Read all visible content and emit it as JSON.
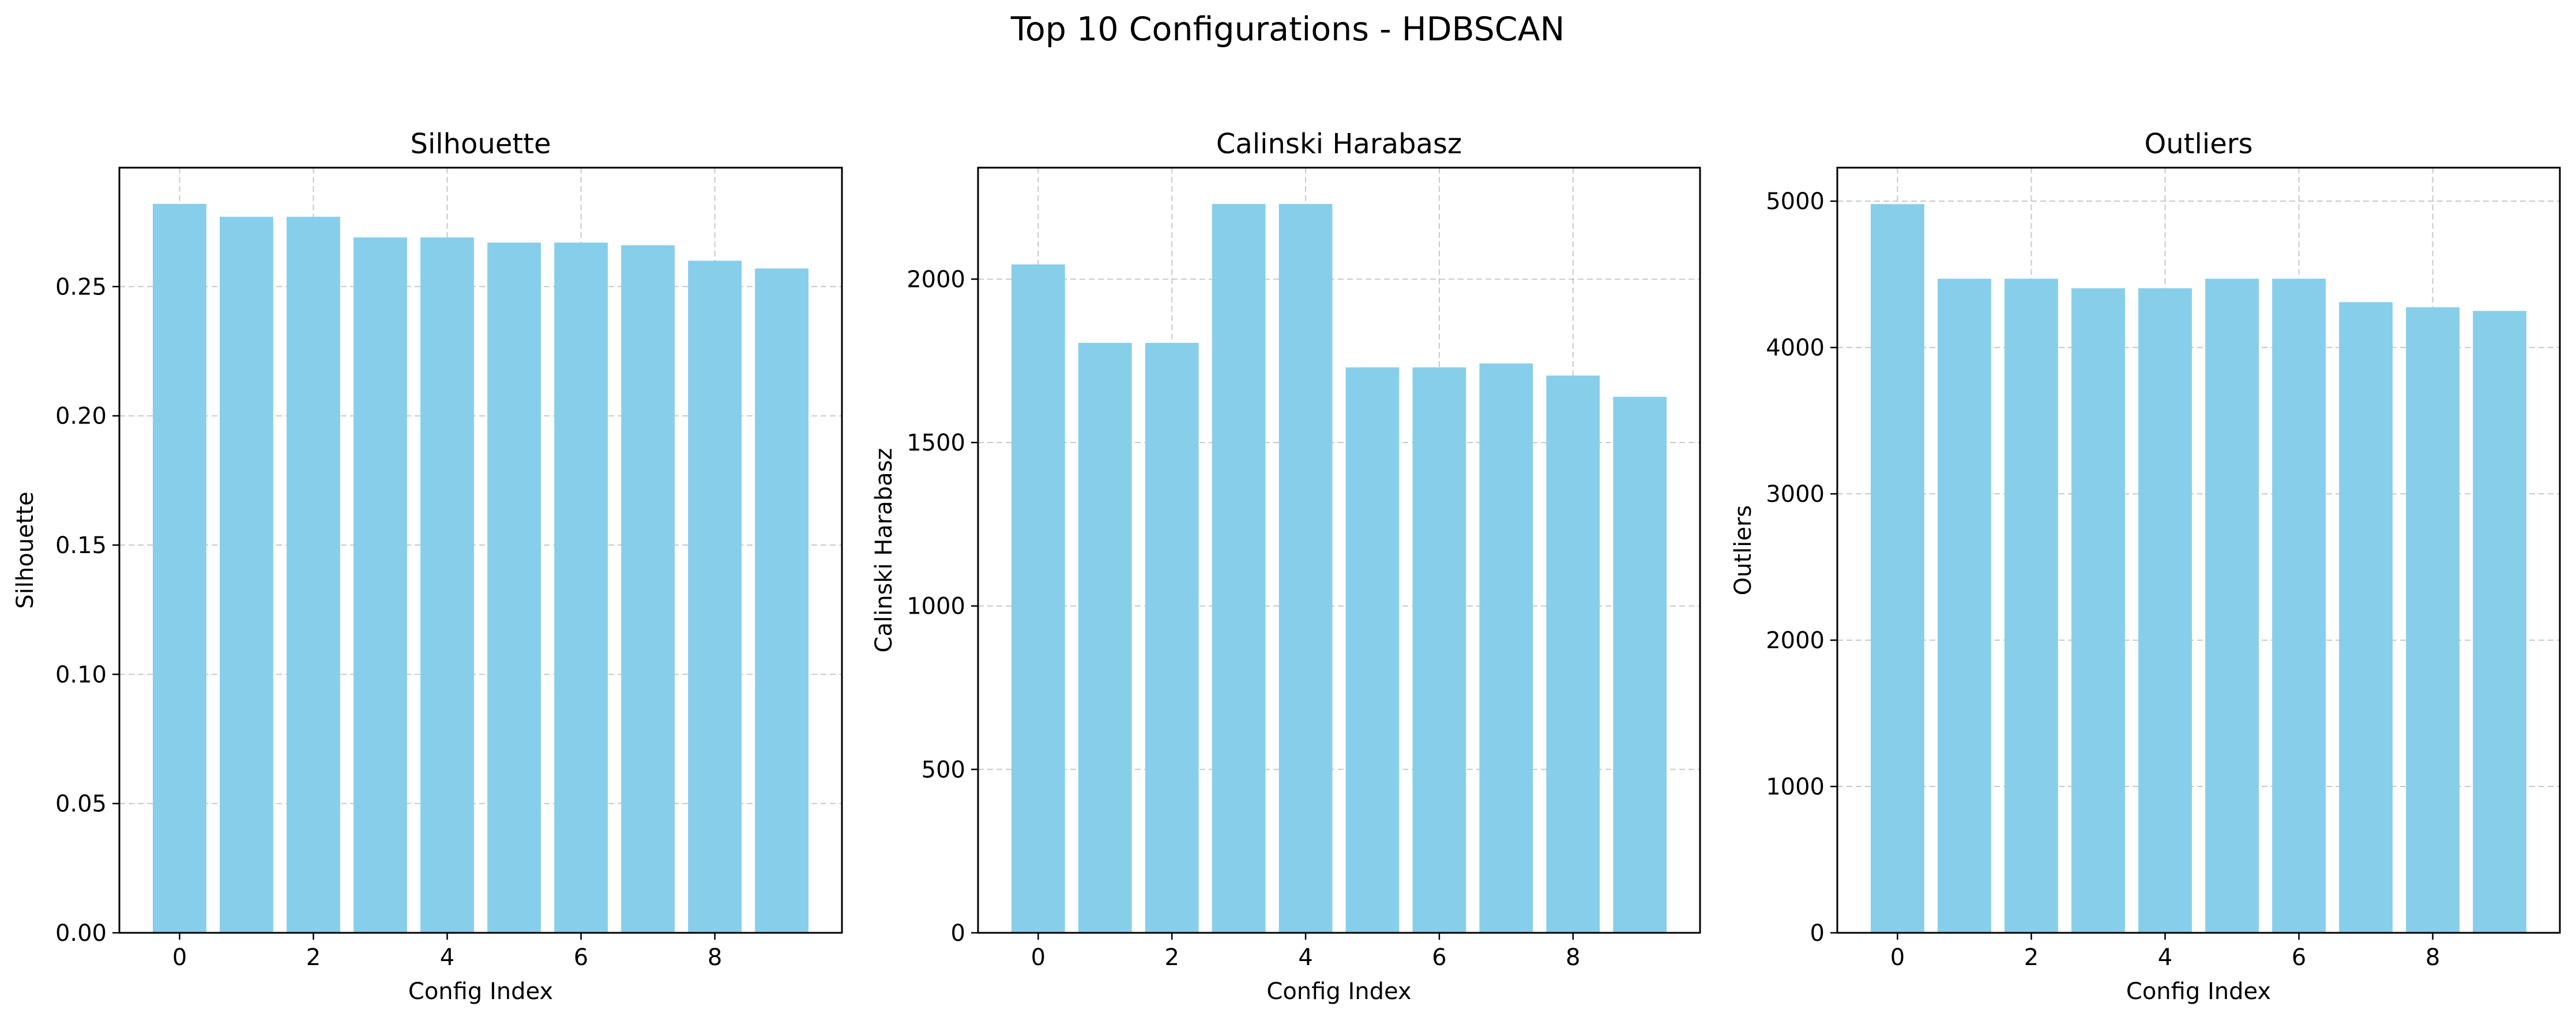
{
  "figure": {
    "suptitle": "Top 10 Configurations - HDBSCAN"
  },
  "style": {
    "bar_color": "#87CEEB",
    "grid_color": "#b0b0b0",
    "axes_color": "#000000"
  },
  "chart_data": [
    {
      "type": "bar",
      "title": "Silhouette",
      "xlabel": "Config Index",
      "ylabel": "Silhouette",
      "x": [
        0,
        1,
        2,
        3,
        4,
        5,
        6,
        7,
        8,
        9
      ],
      "values": [
        0.282,
        0.277,
        0.277,
        0.269,
        0.269,
        0.267,
        0.267,
        0.266,
        0.26,
        0.257
      ],
      "xlim": [
        -0.9,
        9.9
      ],
      "ylim": [
        0,
        0.296
      ],
      "xticks": [
        0,
        2,
        4,
        6,
        8
      ],
      "xtick_labels": [
        "0",
        "2",
        "4",
        "6",
        "8"
      ],
      "yticks": [
        0,
        0.05,
        0.1,
        0.15,
        0.2,
        0.25
      ],
      "ytick_labels": [
        "0.00",
        "0.05",
        "0.10",
        "0.15",
        "0.20",
        "0.25"
      ],
      "grid": true,
      "grid_style": "dashed"
    },
    {
      "type": "bar",
      "title": "Calinski Harabasz",
      "xlabel": "Config Index",
      "ylabel": "Calinski Harabasz",
      "x": [
        0,
        1,
        2,
        3,
        4,
        5,
        6,
        7,
        8,
        9
      ],
      "values": [
        2045,
        1805,
        1805,
        2230,
        2230,
        1730,
        1730,
        1742,
        1705,
        1640
      ],
      "xlim": [
        -0.9,
        9.9
      ],
      "ylim": [
        0,
        2341
      ],
      "xticks": [
        0,
        2,
        4,
        6,
        8
      ],
      "xtick_labels": [
        "0",
        "2",
        "4",
        "6",
        "8"
      ],
      "yticks": [
        0,
        500,
        1000,
        1500,
        2000
      ],
      "ytick_labels": [
        "0",
        "500",
        "1000",
        "1500",
        "2000"
      ],
      "grid": true,
      "grid_style": "dashed"
    },
    {
      "type": "bar",
      "title": "Outliers",
      "xlabel": "Config Index",
      "ylabel": "Outliers",
      "x": [
        0,
        1,
        2,
        3,
        4,
        5,
        6,
        7,
        8,
        9
      ],
      "values": [
        4980,
        4470,
        4470,
        4405,
        4405,
        4470,
        4470,
        4310,
        4275,
        4250
      ],
      "xlim": [
        -0.9,
        9.9
      ],
      "ylim": [
        0,
        5229
      ],
      "xticks": [
        0,
        2,
        4,
        6,
        8
      ],
      "xtick_labels": [
        "0",
        "2",
        "4",
        "6",
        "8"
      ],
      "yticks": [
        0,
        1000,
        2000,
        3000,
        4000,
        5000
      ],
      "ytick_labels": [
        "0",
        "1000",
        "2000",
        "3000",
        "4000",
        "5000"
      ],
      "grid": true,
      "grid_style": "dashed"
    }
  ]
}
